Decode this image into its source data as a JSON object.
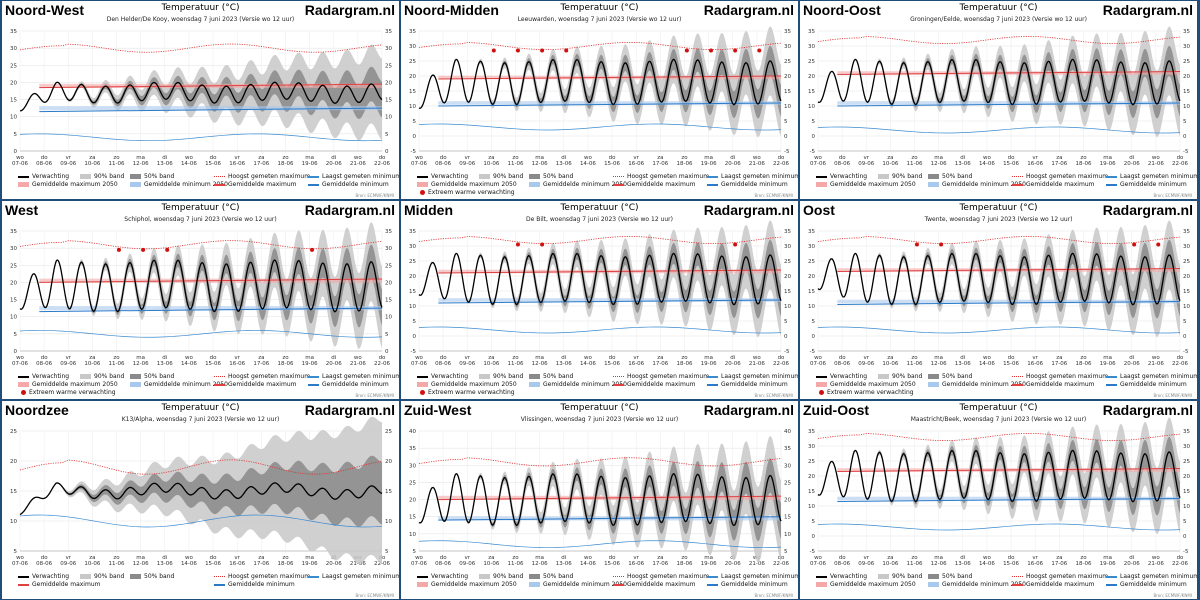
{
  "brand": "Radargram.nl",
  "chart_title": "Temperatuur (°C)",
  "source": "Bron: ECMWF/KNMI",
  "x_ticks": [
    {
      "day": "wo",
      "date": "07-06"
    },
    {
      "day": "do",
      "date": "08-06"
    },
    {
      "day": "vr",
      "date": "09-06"
    },
    {
      "day": "za",
      "date": "10-06"
    },
    {
      "day": "zo",
      "date": "11-06"
    },
    {
      "day": "ma",
      "date": "12-06"
    },
    {
      "day": "di",
      "date": "13-06"
    },
    {
      "day": "wo",
      "date": "14-06"
    },
    {
      "day": "do",
      "date": "15-06"
    },
    {
      "day": "vr",
      "date": "16-06"
    },
    {
      "day": "za",
      "date": "17-06"
    },
    {
      "day": "zo",
      "date": "18-06"
    },
    {
      "day": "ma",
      "date": "19-06"
    },
    {
      "day": "di",
      "date": "20-06"
    },
    {
      "day": "wo",
      "date": "21-06"
    },
    {
      "day": "do",
      "date": "22-06"
    }
  ],
  "legend_labels": {
    "verwachting": "Verwachting",
    "band90": "90% band",
    "band50": "50% band",
    "hoogst": "Hoogst gemeten maximum",
    "laagst": "Laagst gemeten minimum",
    "gemmax2050": "Gemiddelde maximum 2050",
    "gemmin2050": "Gemiddelde minimum 2050",
    "gemmax": "Gemiddelde maximum",
    "gemmin": "Gemiddelde minimum",
    "extreem": "Extreem warme verwachting"
  },
  "colors": {
    "forecast": "#000000",
    "band90": "#c8c8c8",
    "band50": "#8a8a8a",
    "record_max": "#e03030",
    "record_min": "#3a8ad0",
    "avg_max": "#e04040",
    "avg_min": "#2a7ac8",
    "avg_max_2050": "#f4a8a8",
    "avg_min_2050": "#a8c8ec",
    "extreme": "#d01010"
  },
  "panels": [
    {
      "region": "Noord-West",
      "subtitle": "Den Helder/De Kooy, woensdag 7 juni 2023 (Versie wo 12 uur)",
      "ylim": [
        0,
        35
      ],
      "yticks": [
        0,
        5,
        10,
        15,
        20,
        25,
        30,
        35
      ],
      "start": 13,
      "amplitude": 2.5,
      "mean": 17,
      "avg_max": 18.5,
      "avg_max_2050": 19,
      "avg_min": 11.5,
      "avg_min_2050": 12.5,
      "record_max": 30,
      "record_min": 4,
      "extreme_days": [],
      "legend": "two_row"
    },
    {
      "region": "Noord-Midden",
      "subtitle": "Leeuwarden, woensdag 7 juni 2023 (Versie wo 12 uur)",
      "ylim": [
        -5,
        35
      ],
      "yticks": [
        -5,
        0,
        5,
        10,
        15,
        20,
        25,
        30,
        35
      ],
      "start": 13,
      "amplitude": 7,
      "mean": 18,
      "avg_max": 19,
      "avg_max_2050": 19.5,
      "avg_min": 10,
      "avg_min_2050": 11,
      "record_max": 30,
      "record_min": 3,
      "extreme_days": [
        3,
        4,
        5,
        6,
        11,
        12,
        13,
        14
      ],
      "legend": "three_row"
    },
    {
      "region": "Noord-Oost",
      "subtitle": "Groningen/Eelde, woensdag 7 juni 2023 (Versie wo 12 uur)",
      "ylim": [
        -5,
        35
      ],
      "yticks": [
        -5,
        0,
        5,
        10,
        15,
        20,
        25,
        30,
        35
      ],
      "start": 15,
      "amplitude": 7,
      "mean": 18,
      "avg_max": 20.5,
      "avg_max_2050": 21,
      "avg_min": 10,
      "avg_min_2050": 11,
      "record_max": 32,
      "record_min": 2,
      "extreme_days": [],
      "legend": "two_row"
    },
    {
      "region": "West",
      "subtitle": "Schiphol, woensdag 7 juni 2023 (Versie wo 12 uur)",
      "ylim": [
        0,
        35
      ],
      "yticks": [
        0,
        5,
        10,
        15,
        20,
        25,
        30,
        35
      ],
      "start": 16,
      "amplitude": 7,
      "mean": 19,
      "avg_max": 20,
      "avg_max_2050": 20.5,
      "avg_min": 11.5,
      "avg_min_2050": 12.5,
      "record_max": 31,
      "record_min": 5,
      "extreme_days": [
        4,
        5,
        6,
        12
      ],
      "legend": "three_row"
    },
    {
      "region": "Midden",
      "subtitle": "De Bilt, woensdag 7 juni 2023 (Versie wo 12 uur)",
      "ylim": [
        -5,
        35
      ],
      "yticks": [
        -5,
        0,
        5,
        10,
        15,
        20,
        25,
        30,
        35
      ],
      "start": 18,
      "amplitude": 8,
      "mean": 19,
      "avg_max": 21,
      "avg_max_2050": 21.5,
      "avg_min": 11,
      "avg_min_2050": 12,
      "record_max": 32,
      "record_min": 2,
      "extreme_days": [
        4,
        5,
        13
      ],
      "legend": "three_row"
    },
    {
      "region": "Oost",
      "subtitle": "Twente, woensdag 7 juni 2023 (Versie wo 12 uur)",
      "ylim": [
        -5,
        35
      ],
      "yticks": [
        -5,
        0,
        5,
        10,
        15,
        20,
        25,
        30,
        35
      ],
      "start": 20,
      "amplitude": 8,
      "mean": 19,
      "avg_max": 21.5,
      "avg_max_2050": 22,
      "avg_min": 10.5,
      "avg_min_2050": 11.5,
      "record_max": 32,
      "record_min": 2,
      "extreme_days": [
        4,
        5,
        13,
        14
      ],
      "legend": "three_row"
    },
    {
      "region": "Noordzee",
      "subtitle": "K13/Alpha, woensdag 7 juni 2023 (Versie wo 12 uur)",
      "ylim": [
        5,
        25
      ],
      "yticks": [
        5,
        10,
        15,
        20,
        25
      ],
      "start": 11.5,
      "amplitude": 0.8,
      "mean": 15,
      "avg_max": null,
      "avg_max_2050": null,
      "avg_min": null,
      "avg_min_2050": null,
      "record_max": 19,
      "record_min": 10,
      "extreme_days": [],
      "legend": "noordzee"
    },
    {
      "region": "Zuid-West",
      "subtitle": "Vlissingen, woensdag 7 juni 2023 (Versie wo 12 uur)",
      "ylim": [
        5,
        40
      ],
      "yticks": [
        5,
        10,
        15,
        20,
        25,
        30,
        35,
        40
      ],
      "start": 17,
      "amplitude": 7,
      "mean": 20,
      "avg_max": 20,
      "avg_max_2050": 20.5,
      "avg_min": 14,
      "avg_min_2050": 14.5,
      "record_max": 31,
      "record_min": 7,
      "extreme_days": [],
      "legend": "two_row_alt"
    },
    {
      "region": "Zuid-Oost",
      "subtitle": "Maastricht/Beek, woensdag 7 juni 2023 (Versie wo 12 uur)",
      "ylim": [
        -5,
        35
      ],
      "yticks": [
        -5,
        0,
        5,
        10,
        15,
        20,
        25,
        30,
        35
      ],
      "start": 18,
      "amplitude": 8,
      "mean": 20,
      "avg_max": 21.5,
      "avg_max_2050": 22,
      "avg_min": 11.5,
      "avg_min_2050": 12.5,
      "record_max": 33,
      "record_min": 3,
      "extreme_days": [],
      "legend": "two_row"
    }
  ],
  "chart_data": {
    "type": "line",
    "title": "Temperatuur (°C)",
    "x": [
      "07-06",
      "08-06",
      "09-06",
      "10-06",
      "11-06",
      "12-06",
      "13-06",
      "14-06",
      "15-06",
      "16-06",
      "17-06",
      "18-06",
      "19-06",
      "20-06",
      "21-06",
      "22-06"
    ],
    "series_note": ""
  }
}
